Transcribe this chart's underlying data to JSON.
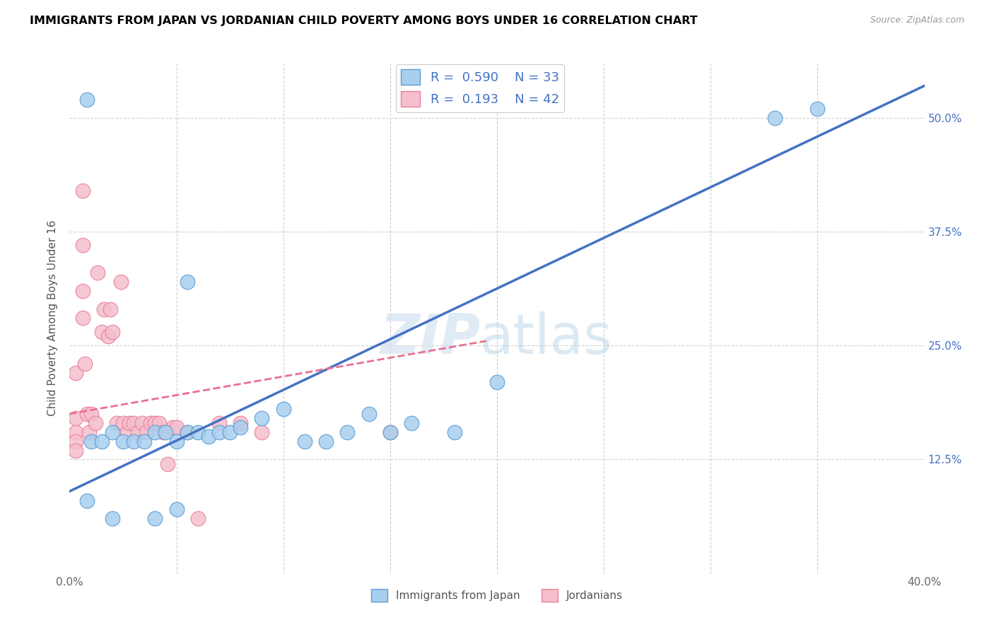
{
  "title": "IMMIGRANTS FROM JAPAN VS JORDANIAN CHILD POVERTY AMONG BOYS UNDER 16 CORRELATION CHART",
  "source": "Source: ZipAtlas.com",
  "xlabel_blue": "Immigrants from Japan",
  "xlabel_pink": "Jordanians",
  "ylabel": "Child Poverty Among Boys Under 16",
  "xlim": [
    0.0,
    0.4
  ],
  "ylim": [
    0.0,
    0.56
  ],
  "xticks": [
    0.0,
    0.05,
    0.1,
    0.15,
    0.2,
    0.25,
    0.3,
    0.35,
    0.4
  ],
  "yticks": [
    0.0,
    0.125,
    0.25,
    0.375,
    0.5
  ],
  "ytick_labels": [
    "",
    "12.5%",
    "25.0%",
    "37.5%",
    "50.0%"
  ],
  "legend_blue_R": "0.590",
  "legend_blue_N": "33",
  "legend_pink_R": "0.193",
  "legend_pink_N": "42",
  "blue_color": "#A8CFEE",
  "pink_color": "#F5BFCC",
  "blue_edge_color": "#5B9BD5",
  "pink_edge_color": "#E88099",
  "blue_line_color": "#4472C4",
  "pink_line_color": "#E87090",
  "watermark_zip": "ZIP",
  "watermark_atlas": "atlas",
  "blue_scatter_x": [
    0.008,
    0.008,
    0.02,
    0.04,
    0.05,
    0.055,
    0.01,
    0.015,
    0.02,
    0.025,
    0.03,
    0.035,
    0.04,
    0.045,
    0.05,
    0.055,
    0.06,
    0.065,
    0.07,
    0.075,
    0.08,
    0.09,
    0.1,
    0.11,
    0.12,
    0.13,
    0.14,
    0.15,
    0.16,
    0.18,
    0.33,
    0.35,
    0.2
  ],
  "blue_scatter_y": [
    0.52,
    0.08,
    0.06,
    0.06,
    0.07,
    0.32,
    0.145,
    0.145,
    0.155,
    0.145,
    0.145,
    0.145,
    0.155,
    0.155,
    0.145,
    0.155,
    0.155,
    0.15,
    0.155,
    0.155,
    0.16,
    0.17,
    0.18,
    0.145,
    0.145,
    0.155,
    0.175,
    0.155,
    0.165,
    0.155,
    0.5,
    0.51,
    0.21
  ],
  "pink_scatter_x": [
    0.003,
    0.003,
    0.003,
    0.003,
    0.003,
    0.006,
    0.006,
    0.006,
    0.006,
    0.007,
    0.008,
    0.009,
    0.01,
    0.012,
    0.013,
    0.015,
    0.016,
    0.018,
    0.019,
    0.02,
    0.022,
    0.024,
    0.025,
    0.027,
    0.028,
    0.03,
    0.032,
    0.034,
    0.036,
    0.038,
    0.04,
    0.042,
    0.044,
    0.046,
    0.048,
    0.05,
    0.055,
    0.06,
    0.07,
    0.08,
    0.09,
    0.15
  ],
  "pink_scatter_y": [
    0.22,
    0.17,
    0.155,
    0.145,
    0.135,
    0.42,
    0.36,
    0.31,
    0.28,
    0.23,
    0.175,
    0.155,
    0.175,
    0.165,
    0.33,
    0.265,
    0.29,
    0.26,
    0.29,
    0.265,
    0.165,
    0.32,
    0.165,
    0.155,
    0.165,
    0.165,
    0.155,
    0.165,
    0.155,
    0.165,
    0.165,
    0.165,
    0.155,
    0.12,
    0.16,
    0.16,
    0.155,
    0.06,
    0.165,
    0.165,
    0.155,
    0.155
  ],
  "blue_line_x0": 0.0,
  "blue_line_y0": 0.09,
  "blue_line_x1": 0.4,
  "blue_line_y1": 0.535,
  "pink_line_x0": 0.0,
  "pink_line_y0": 0.175,
  "pink_line_x1": 0.195,
  "pink_line_y1": 0.255
}
